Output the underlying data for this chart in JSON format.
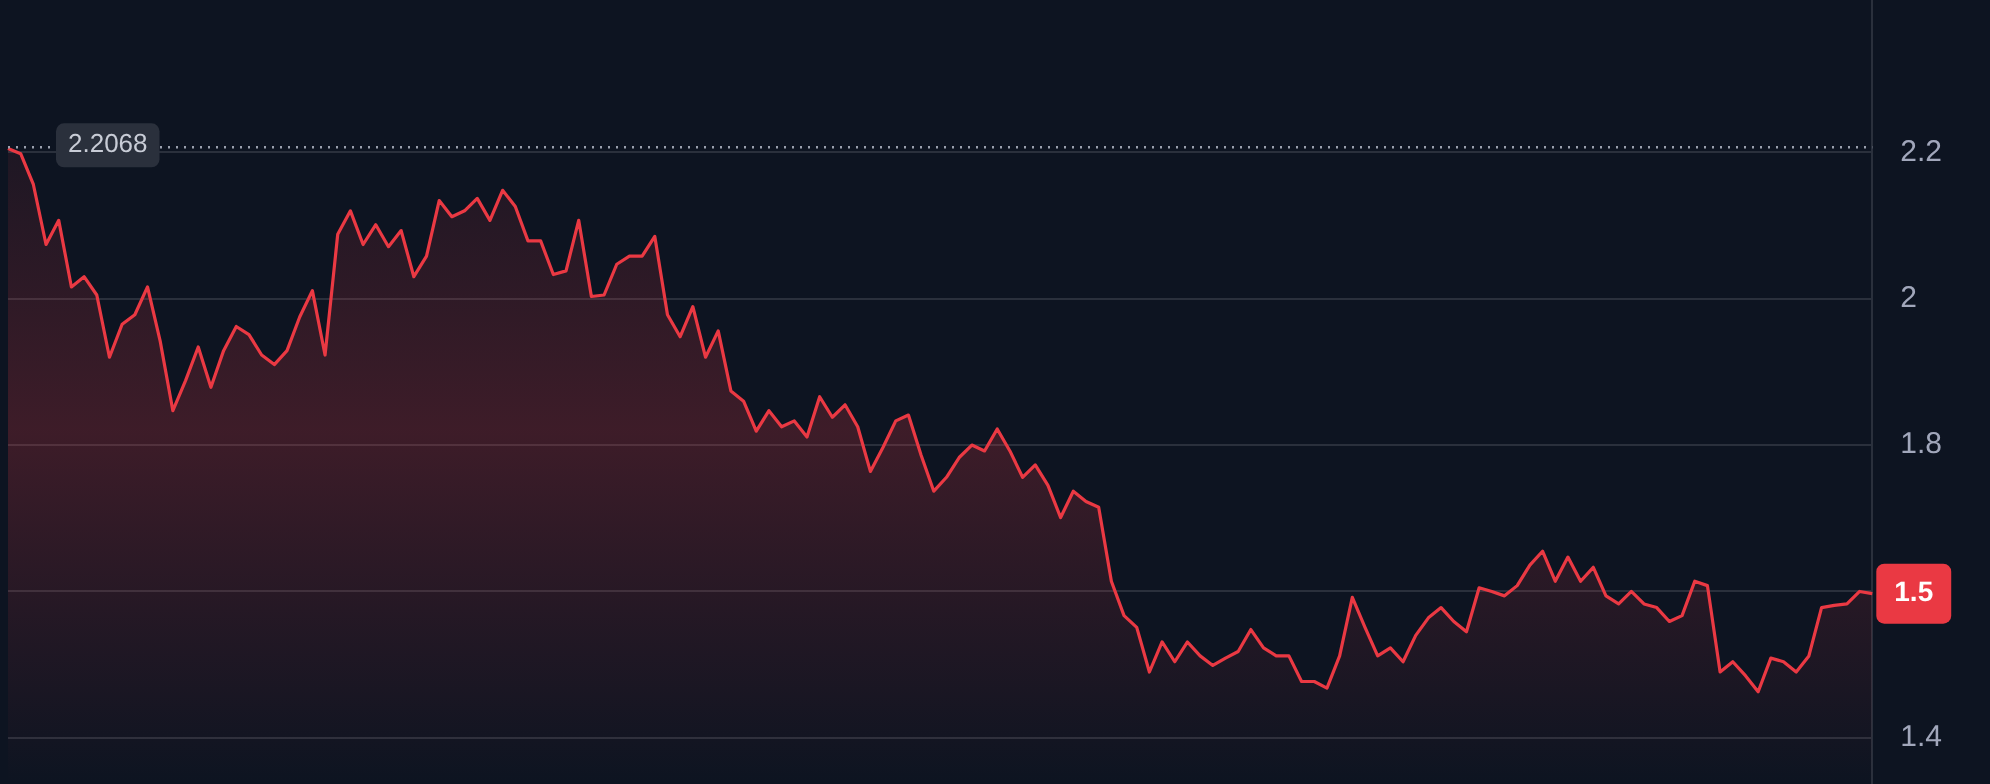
{
  "chart_data": {
    "type": "area",
    "categories": [
      null,
      null,
      null,
      null,
      null,
      null,
      null,
      null,
      null,
      null,
      null,
      null,
      null,
      null,
      null,
      null,
      null,
      null,
      null,
      null,
      null,
      null,
      null,
      null,
      null,
      null,
      null,
      null,
      null,
      null,
      null,
      null,
      null,
      null,
      null,
      null,
      null,
      null,
      null,
      null,
      null,
      null,
      null,
      null,
      null,
      null,
      null,
      null,
      null,
      null,
      null,
      null,
      null,
      null,
      null,
      null,
      null,
      null,
      null,
      null,
      null,
      null,
      null,
      null,
      null,
      null,
      null,
      null,
      null,
      null,
      null,
      null,
      null,
      null,
      null,
      null,
      null,
      null,
      null,
      null,
      null,
      null,
      null,
      null,
      null,
      null,
      null,
      null,
      null,
      null,
      null,
      null,
      null,
      null,
      null,
      null,
      null,
      null,
      null,
      null,
      null,
      null,
      null,
      null,
      null,
      null,
      null,
      null,
      null,
      null,
      null,
      null,
      null,
      null,
      null,
      null,
      null,
      null,
      null,
      null,
      null,
      null,
      null,
      null,
      null,
      null,
      null,
      null,
      null,
      null,
      null,
      null,
      null,
      null,
      null,
      null,
      null,
      null,
      null,
      null,
      null,
      null,
      null,
      null,
      null,
      null,
      null,
      null
    ],
    "series": [
      {
        "color": "#ea3943",
        "values": [
          2.205,
          2.198,
          2.156,
          2.074,
          2.107,
          2.016,
          2.03,
          2.005,
          1.92,
          1.965,
          1.978,
          2.016,
          1.942,
          1.847,
          1.888,
          1.934,
          1.879,
          1.929,
          1.962,
          1.951,
          1.923,
          1.91,
          1.929,
          1.975,
          2.011,
          1.923,
          2.088,
          2.12,
          2.074,
          2.101,
          2.071,
          2.093,
          2.03,
          2.058,
          2.134,
          2.112,
          2.12,
          2.137,
          2.107,
          2.148,
          2.126,
          2.079,
          2.079,
          2.033,
          2.038,
          2.107,
          2.003,
          2.005,
          2.047,
          2.058,
          2.058,
          2.085,
          1.978,
          1.948,
          1.989,
          1.92,
          1.956,
          1.874,
          1.86,
          1.819,
          1.847,
          1.825,
          1.833,
          1.811,
          1.866,
          1.838,
          1.855,
          1.825,
          1.764,
          1.797,
          1.833,
          1.841,
          1.786,
          1.737,
          1.756,
          1.783,
          1.8,
          1.792,
          1.822,
          1.792,
          1.756,
          1.773,
          1.745,
          1.701,
          1.737,
          1.723,
          1.715,
          1.614,
          1.567,
          1.551,
          1.49,
          1.531,
          1.504,
          1.531,
          1.512,
          1.499,
          1.509,
          1.518,
          1.548,
          1.523,
          1.512,
          1.512,
          1.477,
          1.477,
          1.468,
          1.512,
          1.592,
          1.551,
          1.512,
          1.523,
          1.504,
          1.54,
          1.564,
          1.578,
          1.559,
          1.545,
          1.605,
          1.6,
          1.594,
          1.608,
          1.636,
          1.655,
          1.614,
          1.647,
          1.614,
          1.633,
          1.594,
          1.583,
          1.6,
          1.583,
          1.578,
          1.559,
          1.567,
          1.614,
          1.608,
          1.49,
          1.504,
          1.485,
          1.463,
          1.509,
          1.504,
          1.49,
          1.512,
          1.578,
          1.581,
          1.583,
          1.6,
          1.597
        ]
      }
    ],
    "ylim": [
      1.337,
      2.408
    ],
    "yticks": [
      1.4,
      {
        "value": 1.6,
        "label": null
      },
      1.8,
      2.0,
      2.2
    ],
    "grid": "y",
    "ref_lines": [
      {
        "axis": "y",
        "value": 2.2068,
        "label": "2.2068",
        "line_style": "dotted",
        "color": "#9aa0ae"
      }
    ],
    "annotations": [
      "1.5"
    ]
  }
}
